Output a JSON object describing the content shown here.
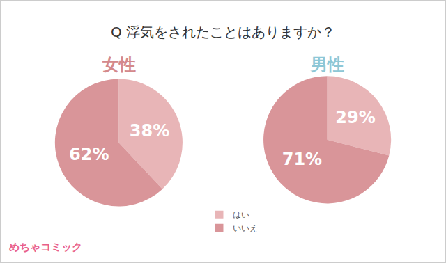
{
  "title": "Q 浮気をされたことはありますか？",
  "legend": "bottom",
  "annotations": [
    "めちゃコミック"
  ],
  "chart_data": [
    {
      "type": "pie",
      "title": "女性",
      "categories": [
        "はい",
        "いいえ"
      ],
      "values": [
        38,
        62
      ],
      "value_labels": [
        "38%",
        "62%"
      ],
      "colors": [
        "#e8b5b7",
        "#d99599"
      ],
      "data_labels": true
    },
    {
      "type": "pie",
      "title": "男性",
      "categories": [
        "はい",
        "いいえ"
      ],
      "values": [
        29,
        71
      ],
      "value_labels": [
        "29%",
        "71%"
      ],
      "colors": [
        "#e8b5b7",
        "#d99599"
      ],
      "data_labels": true
    }
  ]
}
